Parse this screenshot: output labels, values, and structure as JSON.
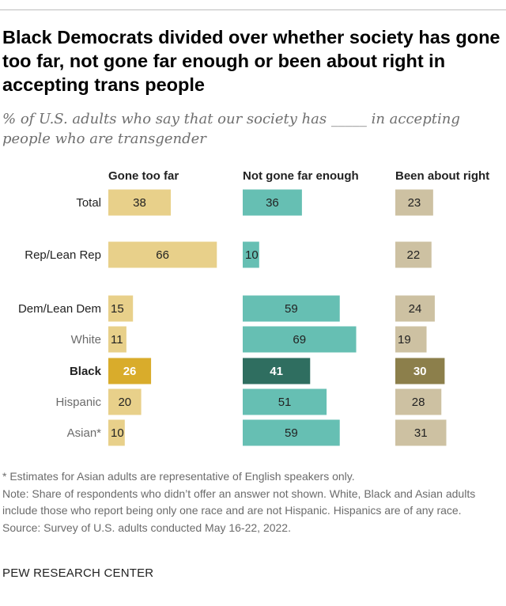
{
  "title": "Black Democrats divided over whether society has gone too far, not gone far enough or been about right in accepting trans people",
  "subtitle": "% of U.S. adults who say that our society has _____ in accepting people who are transgender",
  "chart_data": {
    "type": "bar",
    "orientation": "horizontal",
    "categories": [
      "Total",
      "Rep/Lean Rep",
      "Dem/Lean Dem",
      "White",
      "Black",
      "Hispanic",
      "Asian*"
    ],
    "highlight_category": "Black",
    "series": [
      {
        "name": "Gone too far",
        "values": [
          38,
          66,
          15,
          11,
          26,
          20,
          10
        ],
        "color": "#e8d08a",
        "highlight_color": "#d9ac2b"
      },
      {
        "name": "Not gone far enough",
        "values": [
          36,
          10,
          59,
          69,
          41,
          51,
          59
        ],
        "color": "#66bfb3",
        "highlight_color": "#2f6e60"
      },
      {
        "name": "Been about right",
        "values": [
          23,
          22,
          24,
          19,
          30,
          28,
          31
        ],
        "color": "#cdc1a2",
        "highlight_color": "#8c7f4b"
      }
    ]
  },
  "notes": [
    "* Estimates for Asian adults are representative of English speakers only.",
    "Note: Share of respondents who didn’t offer an answer not shown. White, Black and Asian adults include those who report being only one race and are not Hispanic. Hispanics are of any race.",
    "Source: Survey of U.S. adults conducted May 16-22, 2022."
  ],
  "brand": "PEW RESEARCH CENTER"
}
